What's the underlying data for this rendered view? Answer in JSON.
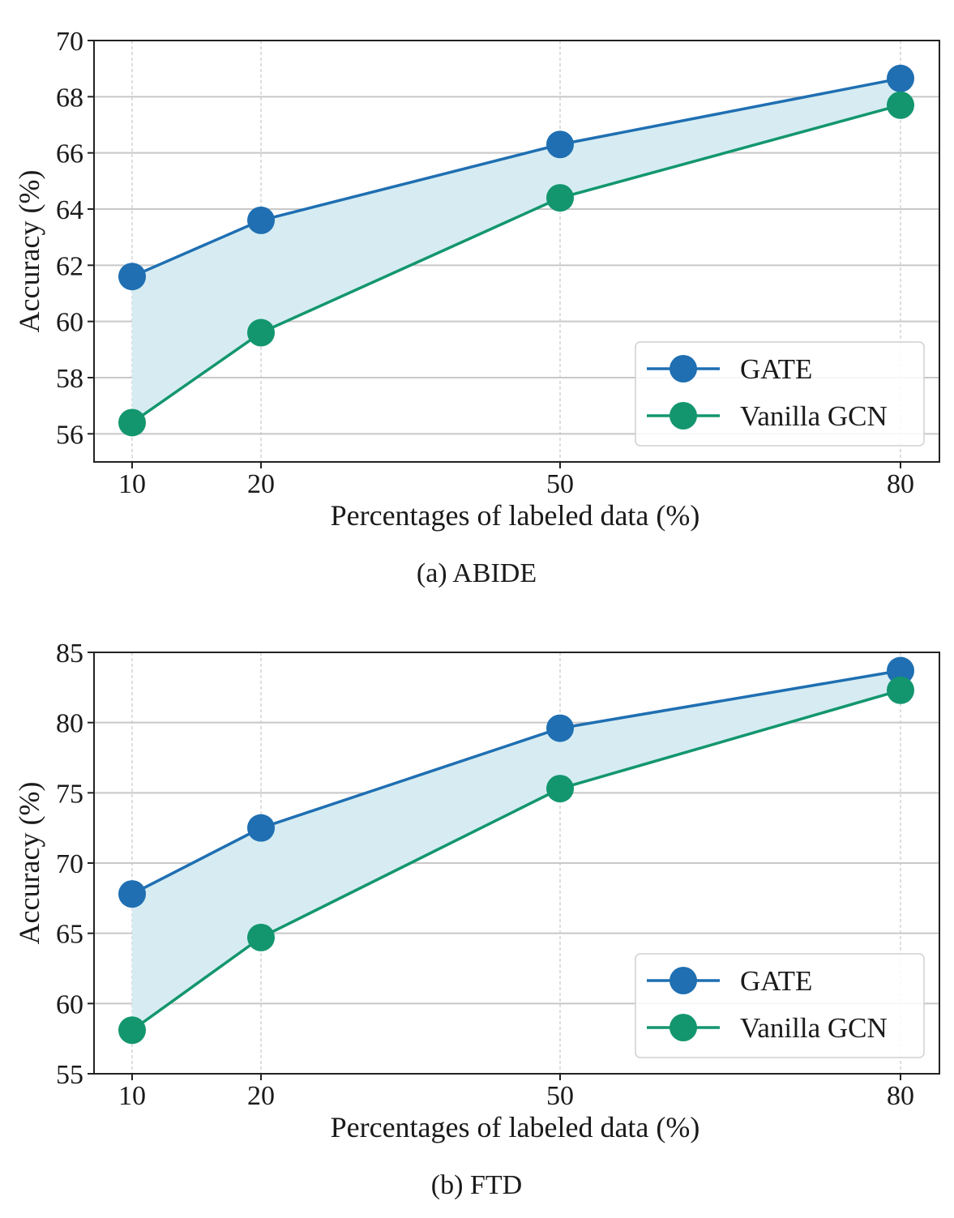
{
  "chart_data": [
    {
      "type": "line",
      "caption": "(a) ABIDE",
      "xlabel": "Percentages of labeled data (%)",
      "ylabel": "Accuracy (%)",
      "x": [
        10,
        20,
        50,
        80
      ],
      "x_tick_labels": [
        "10",
        "20",
        "50",
        "80"
      ],
      "ylim": [
        55,
        70
      ],
      "y_ticks": [
        56,
        58,
        60,
        62,
        64,
        66,
        68,
        70
      ],
      "grid": true,
      "legend_position": "lower-right",
      "fill_between_series": true,
      "series": [
        {
          "name": "GATE",
          "values": [
            61.6,
            63.6,
            66.3,
            68.65
          ],
          "color": "#1f6fb2"
        },
        {
          "name": "Vanilla GCN",
          "values": [
            56.4,
            59.6,
            64.4,
            67.7
          ],
          "color": "#13966e"
        }
      ],
      "fill_color": "#d6ecf2"
    },
    {
      "type": "line",
      "caption": "(b) FTD",
      "xlabel": "Percentages of labeled data (%)",
      "ylabel": "Accuracy (%)",
      "x": [
        10,
        20,
        50,
        80
      ],
      "x_tick_labels": [
        "10",
        "20",
        "50",
        "80"
      ],
      "ylim": [
        55,
        85
      ],
      "y_ticks": [
        55,
        60,
        65,
        70,
        75,
        80,
        85
      ],
      "grid": true,
      "legend_position": "lower-right",
      "fill_between_series": true,
      "series": [
        {
          "name": "GATE",
          "values": [
            67.8,
            72.5,
            79.6,
            83.7
          ],
          "color": "#1f6fb2"
        },
        {
          "name": "Vanilla GCN",
          "values": [
            58.1,
            64.7,
            75.3,
            82.3
          ],
          "color": "#13966e"
        }
      ],
      "fill_color": "#d6ecf2"
    }
  ]
}
